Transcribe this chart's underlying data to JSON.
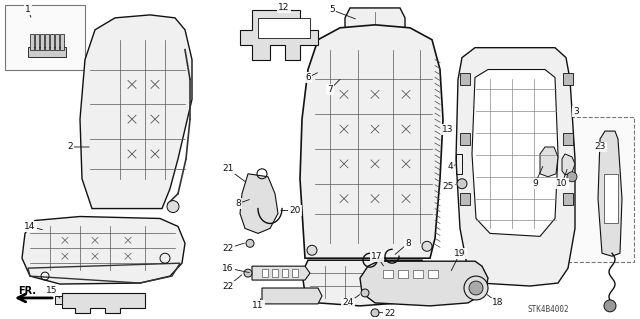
{
  "background_color": "#ffffff",
  "watermark_text": "STK4B4002",
  "figure_width": 6.4,
  "figure_height": 3.19,
  "dpi": 100,
  "label_fontsize": 6.5,
  "label_color": "#111111",
  "line_color": "#111111",
  "fill_light": "#f0f0f0",
  "fill_mid": "#e0e0e0",
  "fill_dark": "#c8c8c8"
}
